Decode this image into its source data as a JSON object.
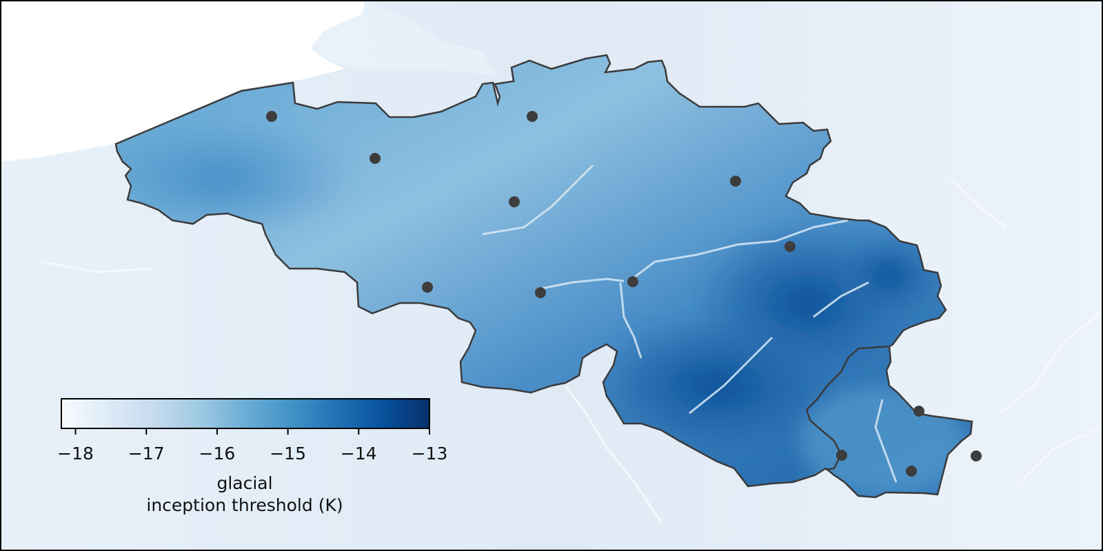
{
  "colorbar": {
    "label_line1": "glacial",
    "label_line2": "inception threshold (K)",
    "min": -18.2,
    "max": -13,
    "ticks": [
      -18,
      -17,
      -16,
      -15,
      -14,
      -13
    ],
    "tick_labels": [
      "−18",
      "−17",
      "−16",
      "−15",
      "−14",
      "−13"
    ],
    "colormap": "Blues",
    "colors": [
      "#f7fbff",
      "#deebf7",
      "#c6dbef",
      "#9ecae1",
      "#6baed6",
      "#4292c6",
      "#2171b5",
      "#08519c",
      "#08306b"
    ],
    "orientation": "horizontal",
    "placement": "lower-left"
  },
  "map": {
    "region": "Belgium",
    "outline_color": "#3a3a3a",
    "marker_color": "#3d3d3d",
    "background_shading": "light blue relief outside the border"
  }
}
